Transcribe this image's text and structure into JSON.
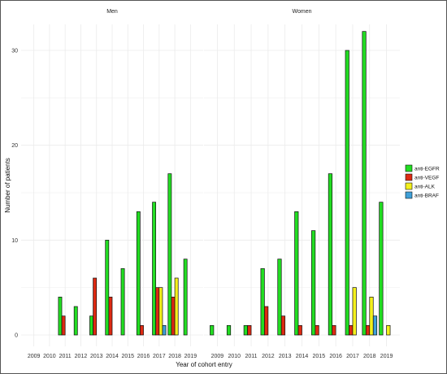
{
  "chart_data": {
    "type": "bar",
    "xlabel": "Year of cohort entry",
    "ylabel": "Number of patients",
    "ylim": [
      0,
      33
    ],
    "y_ticks": [
      0,
      10,
      20,
      30
    ],
    "categories": [
      "2009",
      "2010",
      "2011",
      "2012",
      "2013",
      "2014",
      "2015",
      "2016",
      "2017",
      "2018",
      "2019"
    ],
    "legend": {
      "position": "right"
    },
    "series_colors": {
      "anti-EGFR": "#22dd22",
      "anti-VEGF": "#dd2a12",
      "anti-ALK": "#f3f01c",
      "anti-BRAF": "#3fa0d8"
    },
    "series_names": [
      "anti-EGFR",
      "anti-VEGF",
      "anti-ALK",
      "anti-BRAF"
    ],
    "panels": [
      {
        "title": "Men",
        "series": [
          {
            "name": "anti-EGFR",
            "values": [
              0,
              0,
              4,
              3,
              2,
              10,
              7,
              13,
              14,
              17,
              8
            ]
          },
          {
            "name": "anti-VEGF",
            "values": [
              0,
              0,
              2,
              0,
              6,
              4,
              0,
              1,
              5,
              4,
              0
            ]
          },
          {
            "name": "anti-ALK",
            "values": [
              0,
              0,
              0,
              0,
              0,
              0,
              0,
              0,
              5,
              6,
              0
            ]
          },
          {
            "name": "anti-BRAF",
            "values": [
              0,
              0,
              0,
              0,
              0,
              0,
              0,
              0,
              1,
              0,
              0
            ]
          }
        ]
      },
      {
        "title": "Women",
        "series": [
          {
            "name": "anti-EGFR",
            "values": [
              1,
              1,
              1,
              7,
              8,
              13,
              11,
              17,
              30,
              32,
              14
            ]
          },
          {
            "name": "anti-VEGF",
            "values": [
              0,
              0,
              1,
              3,
              2,
              1,
              1,
              1,
              1,
              1,
              0
            ]
          },
          {
            "name": "anti-ALK",
            "values": [
              0,
              0,
              0,
              0,
              0,
              0,
              0,
              0,
              5,
              4,
              1
            ]
          },
          {
            "name": "anti-BRAF",
            "values": [
              0,
              0,
              0,
              0,
              0,
              0,
              0,
              0,
              0,
              2,
              0
            ]
          }
        ]
      }
    ]
  }
}
